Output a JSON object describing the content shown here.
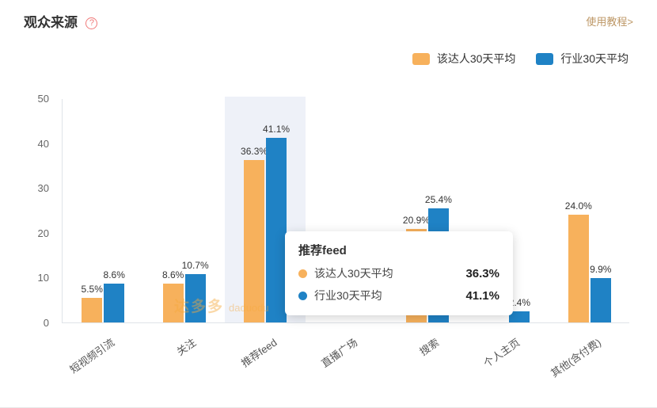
{
  "header": {
    "title": "观众来源",
    "help_icon": "?",
    "tutorial_link": "使用教程>"
  },
  "legend": {
    "items": [
      {
        "label": "该达人30天平均",
        "color": "#F7B15C"
      },
      {
        "label": "行业30天平均",
        "color": "#1F82C5"
      }
    ]
  },
  "chart_data": {
    "type": "bar",
    "title": "观众来源",
    "categories": [
      "短视频引流",
      "关注",
      "推荐feed",
      "直播广场",
      "搜索",
      "个人主页",
      "其他(含付费)"
    ],
    "series": [
      {
        "name": "该达人30天平均",
        "color": "#F7B15C",
        "values": [
          5.5,
          8.6,
          36.3,
          null,
          20.9,
          null,
          24.0
        ],
        "labels": [
          "5.5%",
          "8.6%",
          "36.3%",
          "",
          "20.9%",
          "",
          "24.0%"
        ]
      },
      {
        "name": "行业30天平均",
        "color": "#1F82C5",
        "values": [
          8.6,
          10.7,
          41.1,
          null,
          25.4,
          2.4,
          9.9
        ],
        "labels": [
          "8.6%",
          "10.7%",
          "41.1%",
          "",
          "25.4%",
          "2.4%",
          "9.9%"
        ]
      }
    ],
    "ylim": [
      0,
      50
    ],
    "yticks": [
      0,
      10,
      20,
      30,
      40,
      50
    ],
    "highlighted_category": "推荐feed",
    "legend_position": "top-right"
  },
  "tooltip": {
    "title": "推荐feed",
    "rows": [
      {
        "label": "该达人30天平均",
        "value": "36.3%",
        "color": "#F7B15C"
      },
      {
        "label": "行业30天平均",
        "value": "41.1%",
        "color": "#1F82C5"
      }
    ]
  },
  "watermark": {
    "brand": "达多多",
    "sub": "daduodu"
  }
}
